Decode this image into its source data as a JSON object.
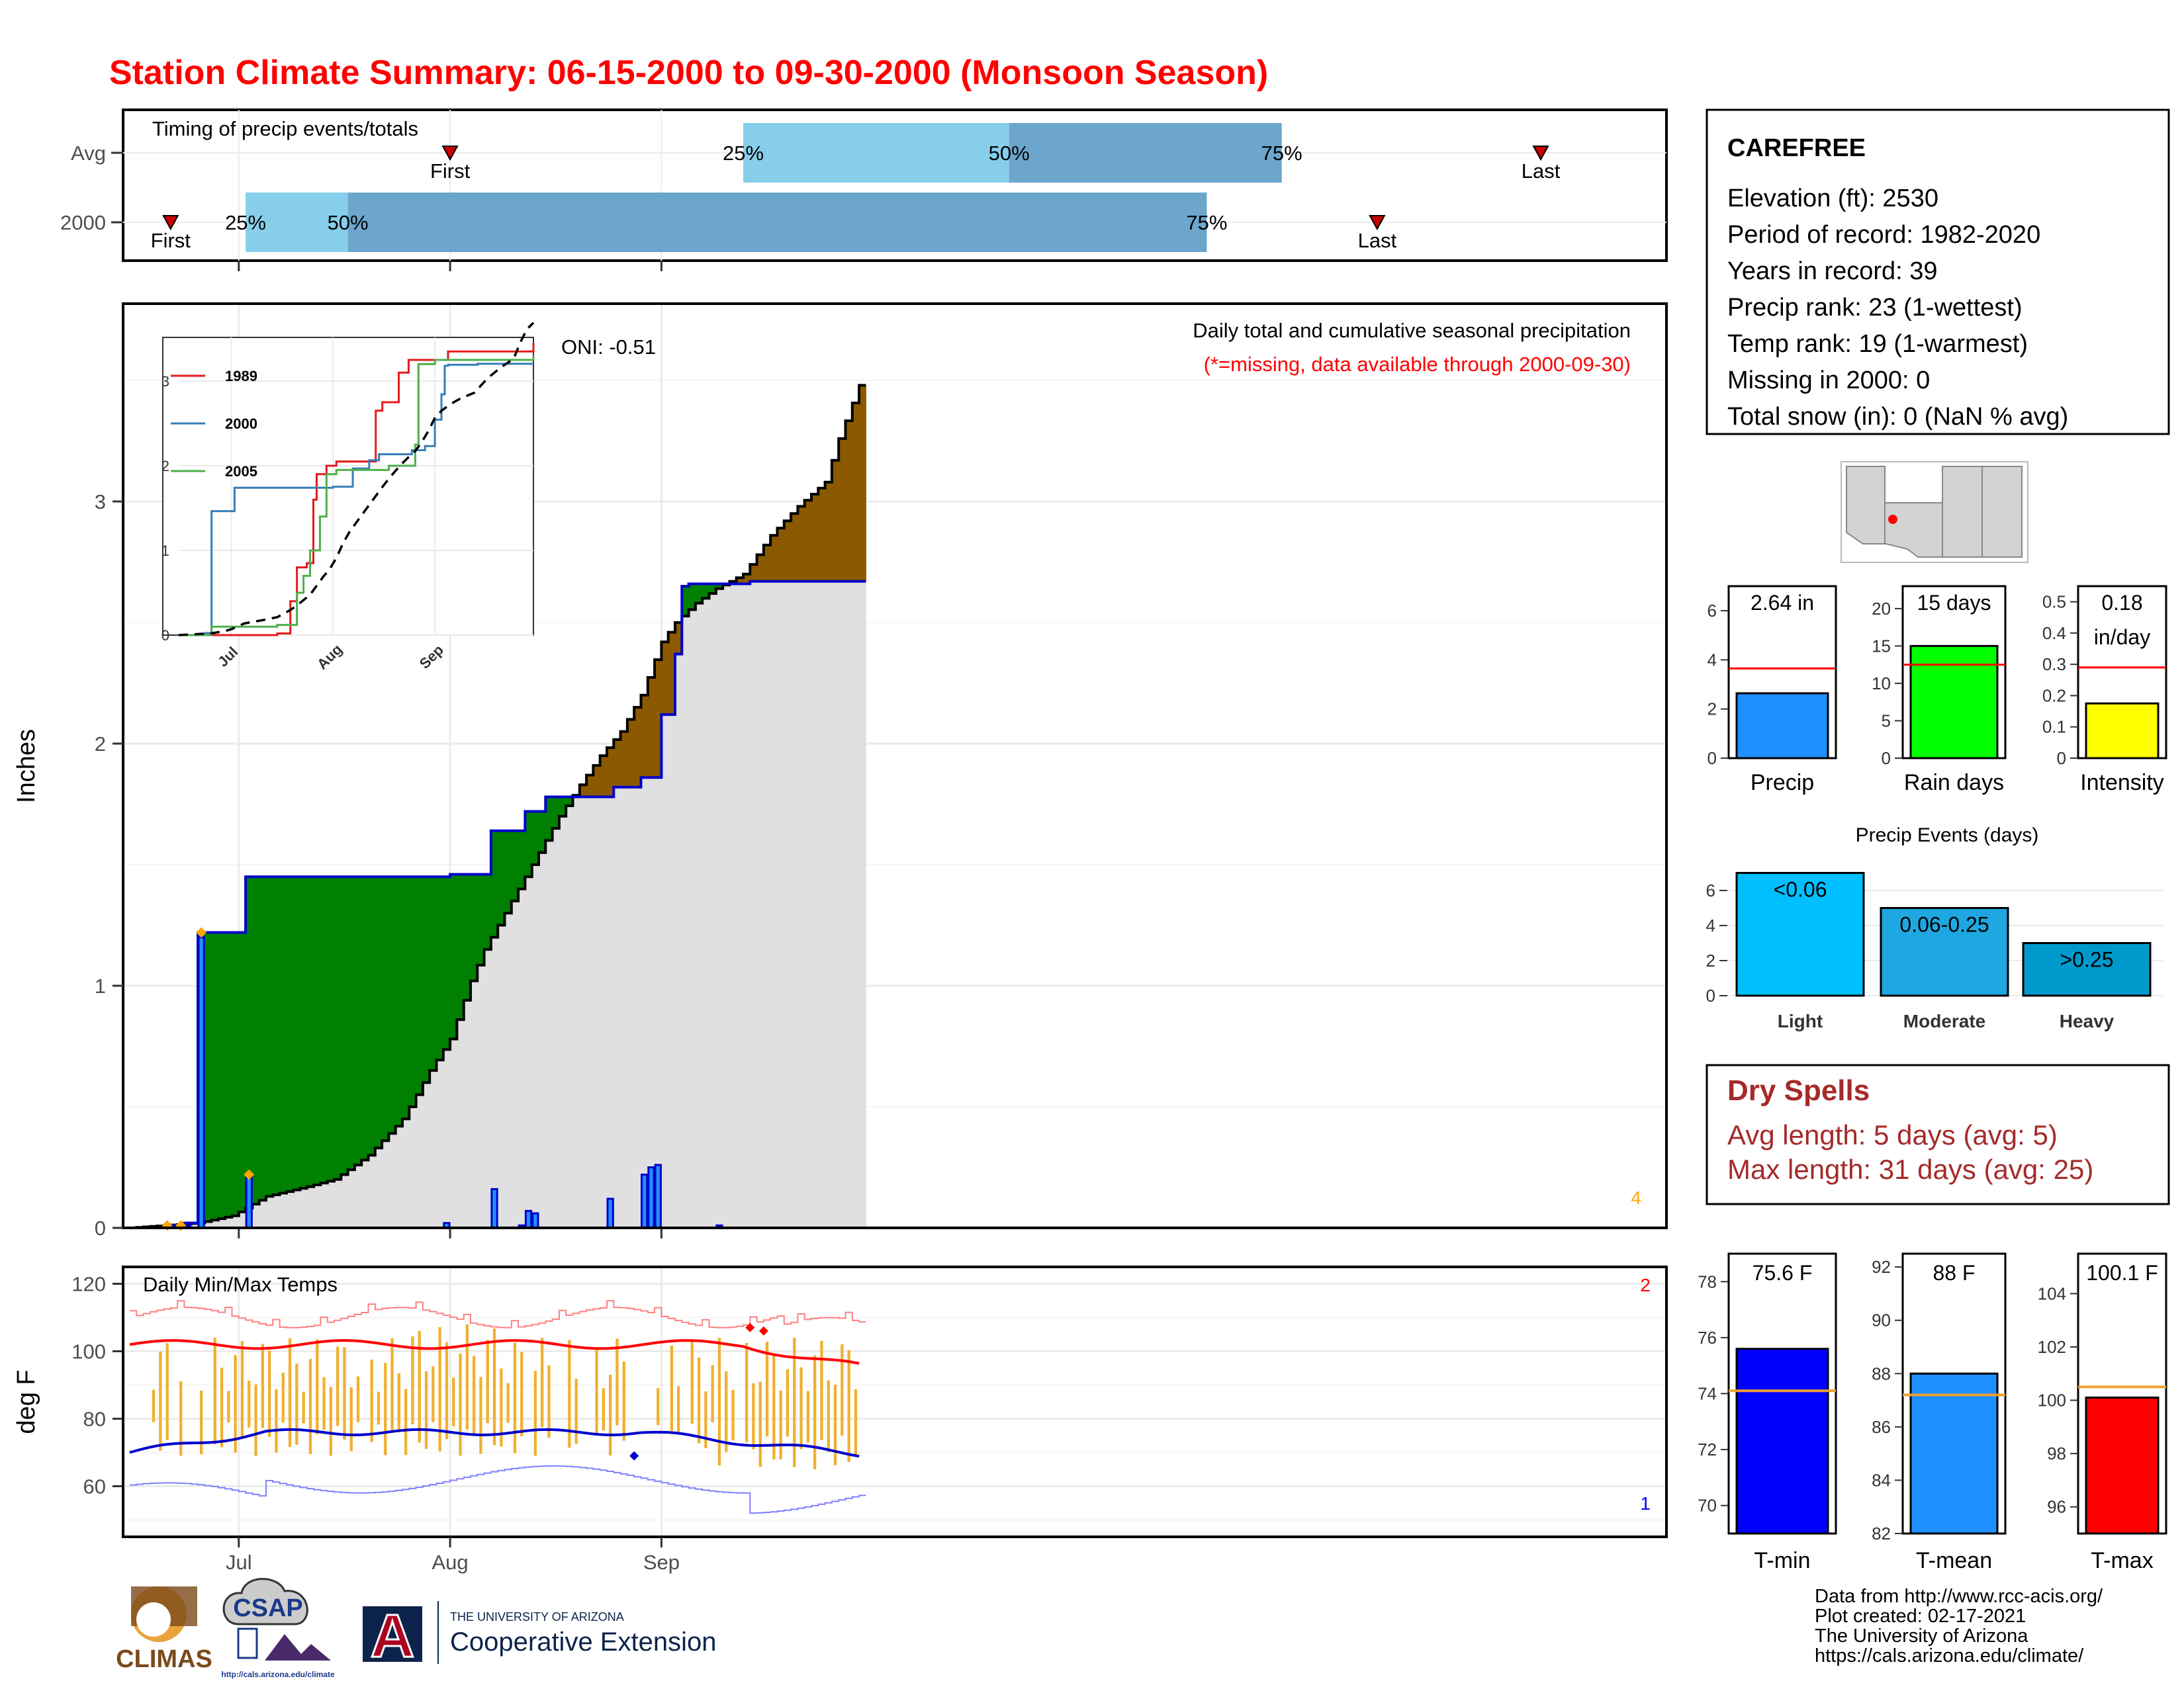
{
  "title": "Station Climate Summary: 06-15-2000 to 09-30-2000 (Monsoon Season)",
  "timing": {
    "title": "Timing of precip events/totals",
    "rows": [
      {
        "label": "Avg",
        "first_day": 47,
        "q25_day": 90,
        "q50_day": 129,
        "q75_day": 169,
        "last_day": 207
      },
      {
        "label": "2000",
        "first_day": 6,
        "q25_day": 17,
        "q50_day": 32,
        "q75_day": 158,
        "last_day": 183
      }
    ],
    "first_label": "First",
    "last_label": "Last",
    "pct_labels": [
      "25%",
      "50%",
      "75%"
    ]
  },
  "station": {
    "name": "CAREFREE",
    "lines": [
      "Elevation (ft): 2530",
      "Period of record: 1982-2020",
      "Years in record: 39",
      "Precip rank: 23 (1-wettest)",
      "Temp rank: 19 (1-warmest)",
      "Missing in 2000: 0",
      "Total snow (in): 0 (NaN % avg)"
    ]
  },
  "precip_main": {
    "ylabel": "Inches",
    "note1": "Daily total and cumulative seasonal precipitation",
    "note2": "(*=missing, data available through 2000-09-30)",
    "oni": "ONI: -0.51",
    "corner_count": "4",
    "yticks": [
      0,
      1,
      2,
      3
    ],
    "colors": {
      "obs_line": "#0000cc",
      "avg_line": "#000000",
      "wetter": "#008000",
      "drier": "#8b5a00",
      "base": "#e0e0e0",
      "bars": "#1e90ff"
    }
  },
  "inset": {
    "series": [
      {
        "name": "1989",
        "color": "#e41a1c"
      },
      {
        "name": "2000",
        "color": "#377eb8"
      },
      {
        "name": "2005",
        "color": "#4daf4a"
      }
    ],
    "xticks": [
      "Jul",
      "Aug",
      "Sep"
    ],
    "yticks": [
      0,
      1,
      2,
      3
    ]
  },
  "temps": {
    "title": "Daily Min/Max Temps",
    "ylabel": "deg F",
    "yticks": [
      60,
      80,
      100,
      120
    ],
    "count_max": "2",
    "count_min": "1"
  },
  "xaxis": {
    "ticks": [
      "Jul",
      "Aug",
      "Sep"
    ]
  },
  "summary_bars": [
    {
      "label": "Precip",
      "value_text": "2.64 in",
      "value": 2.64,
      "avg": 3.65,
      "ymax": 7,
      "yticks": [
        0,
        2,
        4,
        6
      ],
      "color": "#1e90ff"
    },
    {
      "label": "Rain days",
      "value_text": "15 days",
      "value": 15,
      "avg": 12.5,
      "ymax": 23,
      "yticks": [
        0,
        5,
        10,
        15,
        20
      ],
      "color": "#00ff00"
    },
    {
      "label": "Intensity",
      "value_text": "0.18\nin/day",
      "value": 0.175,
      "avg": 0.29,
      "ymax": 0.55,
      "yticks": [
        0.0,
        0.1,
        0.2,
        0.3,
        0.4,
        0.5
      ],
      "color": "#ffff00"
    }
  ],
  "events": {
    "title": "Precip Events (days)",
    "bars": [
      {
        "label": "Light",
        "text": "<0.06",
        "value": 7,
        "color": "#00bfff"
      },
      {
        "label": "Moderate",
        "text": "0.06-0.25",
        "value": 5,
        "color": "#1ea7e0"
      },
      {
        "label": "Heavy",
        "text": ">0.25",
        "value": 3,
        "color": "#0099cc"
      }
    ],
    "yticks": [
      0,
      2,
      4,
      6
    ]
  },
  "dry_spells": {
    "title": "Dry Spells",
    "avg_length": "Avg length: 5 days (avg: 5)",
    "max_length": "Max length: 31 days (avg: 25)"
  },
  "temp_bars": [
    {
      "label": "T-min",
      "value_text": "75.6 F",
      "value": 75.6,
      "avg": 74.1,
      "ymin": 69,
      "ymax": 79,
      "yticks": [
        70,
        72,
        74,
        76,
        78
      ],
      "color": "#0000ff"
    },
    {
      "label": "T-mean",
      "value_text": "88 F",
      "value": 88.0,
      "avg": 87.2,
      "ymin": 82,
      "ymax": 92.5,
      "yticks": [
        82,
        84,
        86,
        88,
        90,
        92
      ],
      "color": "#1e90ff"
    },
    {
      "label": "T-max",
      "value_text": "100.1 F",
      "value": 100.1,
      "avg": 100.5,
      "ymin": 95,
      "ymax": 105.5,
      "yticks": [
        96,
        98,
        100,
        102,
        104
      ],
      "color": "#ff0000"
    }
  ],
  "footer": {
    "lines": [
      "Data from http://www.rcc-acis.org/",
      "Plot created: 02-17-2021",
      "The University of Arizona",
      "https://cals.arizona.edu/climate/"
    ],
    "logo_climas": "CLIMAS",
    "logo_csap": "CSAP",
    "logo_csap_url": "http://cals.arizona.edu/climate",
    "ua_line1": "THE UNIVERSITY OF ARIZONA",
    "ua_line2": "Cooperative Extension",
    "ua_letter": "A"
  }
}
